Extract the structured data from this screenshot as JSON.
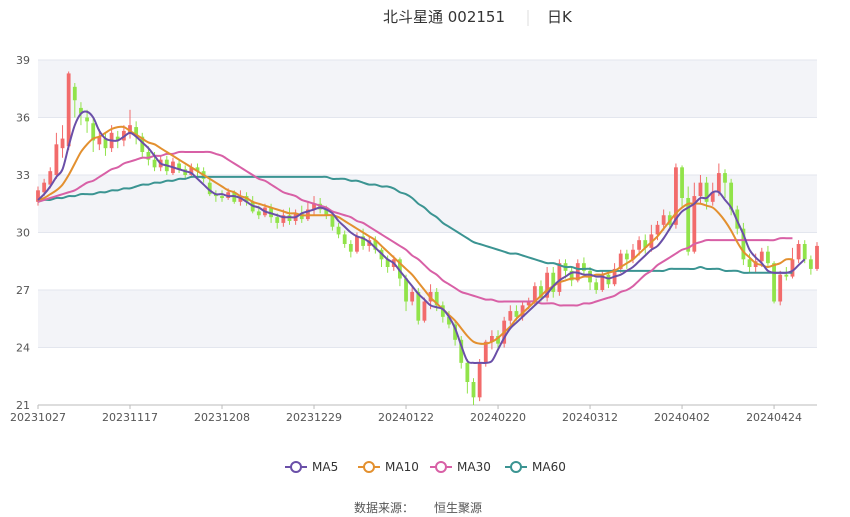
{
  "header": {
    "name": "北斗星通 002151",
    "period": "日K"
  },
  "source": {
    "label": "数据来源：",
    "value": "恒生聚源"
  },
  "legend": [
    "MA5",
    "MA10",
    "MA30",
    "MA60"
  ],
  "colors": {
    "up": "#f26b6b",
    "down": "#91e34a",
    "MA5": "#6a4fa8",
    "MA10": "#e3902f",
    "MA30": "#d860a6",
    "MA60": "#3b9492",
    "grid": "#e3e6ee",
    "band": "#f3f4f8"
  },
  "chart_data": {
    "type": "candlestick",
    "ylim": [
      21,
      39
    ],
    "yticks": [
      21,
      24,
      27,
      30,
      33,
      36,
      39
    ],
    "xtick_labels": [
      "20231027",
      "20231117",
      "20231208",
      "20231229",
      "20240122",
      "20240220",
      "20240312",
      "20240402",
      "20240424"
    ],
    "xtick_index": [
      0,
      15,
      30,
      45,
      60,
      75,
      90,
      105,
      120
    ],
    "candles": [
      [
        31.6,
        32.2,
        31.4,
        32.4
      ],
      [
        32.1,
        32.6,
        31.9,
        32.8
      ],
      [
        32.5,
        33.2,
        32.3,
        33.4
      ],
      [
        33.0,
        34.6,
        32.8,
        35.2
      ],
      [
        34.4,
        34.9,
        33.9,
        35.6
      ],
      [
        34.5,
        38.3,
        34.3,
        38.4
      ],
      [
        37.6,
        36.9,
        36.0,
        37.8
      ],
      [
        36.5,
        36.2,
        35.6,
        36.8
      ],
      [
        36.0,
        35.8,
        35.2,
        36.4
      ],
      [
        35.7,
        34.8,
        34.2,
        36.0
      ],
      [
        34.6,
        35.0,
        34.3,
        35.4
      ],
      [
        34.9,
        34.4,
        34.0,
        35.2
      ],
      [
        34.4,
        35.2,
        34.2,
        35.6
      ],
      [
        35.0,
        34.8,
        34.4,
        35.3
      ],
      [
        34.8,
        35.3,
        34.5,
        35.6
      ],
      [
        35.2,
        35.6,
        34.9,
        36.4
      ],
      [
        35.5,
        35.0,
        34.6,
        35.8
      ],
      [
        35.0,
        34.2,
        33.9,
        35.2
      ],
      [
        34.2,
        33.8,
        33.5,
        34.5
      ],
      [
        33.8,
        33.4,
        33.2,
        34.2
      ],
      [
        33.4,
        33.8,
        33.2,
        34.0
      ],
      [
        33.8,
        33.2,
        33.0,
        34.0
      ],
      [
        33.1,
        33.7,
        33.0,
        33.9
      ],
      [
        33.6,
        33.3,
        33.1,
        33.8
      ],
      [
        33.3,
        33.0,
        32.8,
        33.5
      ],
      [
        33.0,
        33.4,
        32.9,
        33.6
      ],
      [
        33.4,
        33.2,
        32.9,
        33.6
      ],
      [
        33.2,
        32.8,
        32.6,
        33.4
      ],
      [
        32.6,
        32.0,
        31.9,
        32.8
      ],
      [
        32.0,
        31.9,
        31.6,
        32.2
      ],
      [
        31.9,
        31.8,
        31.6,
        32.2
      ],
      [
        31.8,
        32.1,
        31.7,
        32.3
      ],
      [
        32.1,
        31.6,
        31.5,
        32.2
      ],
      [
        31.6,
        31.9,
        31.4,
        32.2
      ],
      [
        31.9,
        31.6,
        31.4,
        32.1
      ],
      [
        31.6,
        31.1,
        31.0,
        31.9
      ],
      [
        31.1,
        30.9,
        30.7,
        31.4
      ],
      [
        30.9,
        31.3,
        30.8,
        31.5
      ],
      [
        31.3,
        30.8,
        30.5,
        31.5
      ],
      [
        30.8,
        30.5,
        30.2,
        31.0
      ],
      [
        30.5,
        30.9,
        30.3,
        31.2
      ],
      [
        30.9,
        30.6,
        30.4,
        31.3
      ],
      [
        30.6,
        31.0,
        30.4,
        31.2
      ],
      [
        31.0,
        30.7,
        30.5,
        31.4
      ],
      [
        30.7,
        31.2,
        30.6,
        31.6
      ],
      [
        31.2,
        31.5,
        30.9,
        31.9
      ],
      [
        31.5,
        31.2,
        31.0,
        31.8
      ],
      [
        31.2,
        30.9,
        30.7,
        31.4
      ],
      [
        30.9,
        30.3,
        30.1,
        31.0
      ],
      [
        30.3,
        29.9,
        29.7,
        30.5
      ],
      [
        29.9,
        29.4,
        29.2,
        30.1
      ],
      [
        29.4,
        29.0,
        28.7,
        29.6
      ],
      [
        29.0,
        29.8,
        28.9,
        30.0
      ],
      [
        29.8,
        29.3,
        29.1,
        30.2
      ],
      [
        29.3,
        29.6,
        29.0,
        29.8
      ],
      [
        29.6,
        29.1,
        28.9,
        29.8
      ],
      [
        29.1,
        28.6,
        28.2,
        29.2
      ],
      [
        28.6,
        28.2,
        27.9,
        28.8
      ],
      [
        28.2,
        28.6,
        28.0,
        28.8
      ],
      [
        28.6,
        27.6,
        27.2,
        28.7
      ],
      [
        27.6,
        26.4,
        25.9,
        27.8
      ],
      [
        26.4,
        26.9,
        26.2,
        27.2
      ],
      [
        26.9,
        25.4,
        25.2,
        27.1
      ],
      [
        25.4,
        26.4,
        25.3,
        26.6
      ],
      [
        26.4,
        26.9,
        26.0,
        27.3
      ],
      [
        26.9,
        26.2,
        25.9,
        27.1
      ],
      [
        26.2,
        25.6,
        25.3,
        26.4
      ],
      [
        25.6,
        25.2,
        25.0,
        25.9
      ],
      [
        25.2,
        24.4,
        24.1,
        25.4
      ],
      [
        24.4,
        23.2,
        22.9,
        24.6
      ],
      [
        23.2,
        22.2,
        21.6,
        23.4
      ],
      [
        22.2,
        21.4,
        21.0,
        22.4
      ],
      [
        21.4,
        23.2,
        21.2,
        23.4
      ],
      [
        23.2,
        24.3,
        23.0,
        24.4
      ],
      [
        24.3,
        24.6,
        23.9,
        24.9
      ],
      [
        24.6,
        24.2,
        23.9,
        24.9
      ],
      [
        24.2,
        25.4,
        24.0,
        25.6
      ],
      [
        25.4,
        25.9,
        25.2,
        26.2
      ],
      [
        25.9,
        25.6,
        25.4,
        26.2
      ],
      [
        25.6,
        26.2,
        25.4,
        26.4
      ],
      [
        26.2,
        26.4,
        26.0,
        26.6
      ],
      [
        26.4,
        27.2,
        26.2,
        27.4
      ],
      [
        27.2,
        26.6,
        26.4,
        27.5
      ],
      [
        26.6,
        27.9,
        26.4,
        28.2
      ],
      [
        27.9,
        26.9,
        26.6,
        28.2
      ],
      [
        26.9,
        28.4,
        26.7,
        28.6
      ],
      [
        28.4,
        28.0,
        27.6,
        28.6
      ],
      [
        28.0,
        27.5,
        27.2,
        28.2
      ],
      [
        27.5,
        28.4,
        27.4,
        28.6
      ],
      [
        28.4,
        28.0,
        27.8,
        28.7
      ],
      [
        28.0,
        27.4,
        27.0,
        28.2
      ],
      [
        27.4,
        27.0,
        26.8,
        27.6
      ],
      [
        27.0,
        27.8,
        26.9,
        28.0
      ],
      [
        27.8,
        27.3,
        27.1,
        28.0
      ],
      [
        27.3,
        28.1,
        27.2,
        28.4
      ],
      [
        28.1,
        28.9,
        27.9,
        29.1
      ],
      [
        28.9,
        28.6,
        28.1,
        29.1
      ],
      [
        28.6,
        29.1,
        28.4,
        29.4
      ],
      [
        29.1,
        29.6,
        28.8,
        29.8
      ],
      [
        29.6,
        29.2,
        28.9,
        29.9
      ],
      [
        29.2,
        29.9,
        29.0,
        30.4
      ],
      [
        29.9,
        30.4,
        29.6,
        30.6
      ],
      [
        30.4,
        30.9,
        30.1,
        31.2
      ],
      [
        30.9,
        30.4,
        30.1,
        31.1
      ],
      [
        30.4,
        33.4,
        30.2,
        33.6
      ],
      [
        33.4,
        31.8,
        31.3,
        33.5
      ],
      [
        31.8,
        29.0,
        28.8,
        32.4
      ],
      [
        29.0,
        31.9,
        28.9,
        32.6
      ],
      [
        31.9,
        32.6,
        31.5,
        33.0
      ],
      [
        32.6,
        31.6,
        31.2,
        32.9
      ],
      [
        31.6,
        32.1,
        31.4,
        32.6
      ],
      [
        32.1,
        33.1,
        31.9,
        33.6
      ],
      [
        33.1,
        32.6,
        31.8,
        33.3
      ],
      [
        32.6,
        31.2,
        30.9,
        32.8
      ],
      [
        31.2,
        30.2,
        29.9,
        31.4
      ],
      [
        30.2,
        28.6,
        28.3,
        30.5
      ],
      [
        28.6,
        28.2,
        27.9,
        28.9
      ],
      [
        28.2,
        28.5,
        27.9,
        28.9
      ],
      [
        28.5,
        29.0,
        28.2,
        29.2
      ],
      [
        29.0,
        28.4,
        28.2,
        29.3
      ],
      [
        28.4,
        26.4,
        26.3,
        28.5
      ],
      [
        26.4,
        27.8,
        26.2,
        28.0
      ],
      [
        27.8,
        27.7,
        27.5,
        28.2
      ],
      [
        27.7,
        28.6,
        27.6,
        29.2
      ],
      [
        28.6,
        29.4,
        28.4,
        29.6
      ],
      [
        29.4,
        28.6,
        28.4,
        29.6
      ],
      [
        28.6,
        28.1,
        27.8,
        28.8
      ],
      [
        28.1,
        29.3,
        28.0,
        29.5
      ]
    ],
    "series": [
      {
        "name": "MA5",
        "values": [
          31.7,
          32.0,
          32.4,
          32.9,
          33.3,
          34.5,
          35.6,
          36.2,
          36.3,
          36.0,
          35.3,
          34.9,
          34.8,
          34.8,
          35.0,
          35.2,
          35.0,
          34.7,
          34.4,
          34.0,
          33.6,
          33.5,
          33.4,
          33.3,
          33.2,
          33.1,
          32.8,
          32.5,
          32.2,
          32.0,
          32.0,
          31.9,
          31.9,
          31.8,
          31.6,
          31.4,
          31.3,
          31.1,
          31.0,
          30.9,
          30.8,
          30.8,
          30.8,
          31.0,
          31.1,
          31.2,
          31.3,
          31.2,
          31.0,
          30.6,
          30.3,
          30.0,
          29.8,
          29.7,
          29.5,
          29.2,
          28.9,
          28.6,
          28.4,
          28.0,
          27.6,
          27.2,
          26.8,
          26.5,
          26.2,
          26.1,
          26.0,
          25.6,
          25.0,
          24.1,
          23.3,
          23.2,
          23.2,
          23.2,
          23.3,
          23.9,
          24.5,
          25.0,
          25.3,
          25.6,
          25.9,
          26.2,
          26.5,
          26.8,
          27.2,
          27.5,
          27.7,
          27.9,
          27.9,
          27.8,
          27.8,
          27.7,
          27.7,
          27.6,
          27.7,
          27.8,
          28.0,
          28.2,
          28.5,
          28.8,
          29.1,
          29.3,
          29.7,
          30.2,
          30.7,
          31.1,
          31.3,
          31.5,
          31.8,
          31.8,
          32.1,
          32.1,
          31.7,
          31.3,
          30.6,
          29.9,
          29.1,
          28.7,
          28.4,
          28.0,
          27.9,
          27.9,
          27.9,
          28.0,
          28.3,
          28.6
        ]
      },
      {
        "name": "MA10",
        "values": [
          31.7,
          31.8,
          32.0,
          32.2,
          32.5,
          33.0,
          33.6,
          34.2,
          34.6,
          34.9,
          35.0,
          35.2,
          35.4,
          35.5,
          35.5,
          35.3,
          35.1,
          34.9,
          34.7,
          34.6,
          34.4,
          34.2,
          34.0,
          33.8,
          33.6,
          33.4,
          33.2,
          33.0,
          32.8,
          32.6,
          32.4,
          32.2,
          32.1,
          31.9,
          31.8,
          31.6,
          31.5,
          31.4,
          31.3,
          31.2,
          31.1,
          31.0,
          31.0,
          30.9,
          30.9,
          30.9,
          30.9,
          30.9,
          30.9,
          30.8,
          30.6,
          30.4,
          30.2,
          30.0,
          29.8,
          29.6,
          29.3,
          29.0,
          28.7,
          28.4,
          28.1,
          27.8,
          27.4,
          27.0,
          26.6,
          26.3,
          26.0,
          25.7,
          25.4,
          25.0,
          24.6,
          24.3,
          24.2,
          24.2,
          24.3,
          24.5,
          24.8,
          25.1,
          25.5,
          25.8,
          26.1,
          26.4,
          26.7,
          27.0,
          27.2,
          27.4,
          27.5,
          27.6,
          27.6,
          27.7,
          27.7,
          27.8,
          27.8,
          27.9,
          28.0,
          28.2,
          28.4,
          28.6,
          28.9,
          29.2,
          29.5,
          29.8,
          30.2,
          30.6,
          31.0,
          31.3,
          31.5,
          31.5,
          31.5,
          31.4,
          31.3,
          31.0,
          30.6,
          30.1,
          29.5,
          29.0,
          28.7,
          28.4,
          28.3,
          28.2,
          28.3,
          28.4,
          28.6,
          28.6
        ]
      },
      {
        "name": "MA30",
        "values": [
          31.6,
          31.7,
          31.8,
          31.9,
          32.0,
          32.1,
          32.2,
          32.4,
          32.6,
          32.7,
          32.9,
          33.1,
          33.3,
          33.4,
          33.6,
          33.7,
          33.8,
          33.9,
          33.9,
          34.0,
          34.0,
          34.1,
          34.1,
          34.2,
          34.2,
          34.2,
          34.2,
          34.2,
          34.2,
          34.1,
          34.0,
          33.8,
          33.6,
          33.4,
          33.2,
          33.0,
          32.8,
          32.7,
          32.5,
          32.3,
          32.1,
          32.0,
          31.9,
          31.7,
          31.6,
          31.5,
          31.4,
          31.3,
          31.1,
          31.0,
          30.9,
          30.8,
          30.6,
          30.5,
          30.3,
          30.1,
          29.9,
          29.7,
          29.5,
          29.3,
          29.1,
          28.8,
          28.6,
          28.3,
          28.0,
          27.8,
          27.5,
          27.3,
          27.1,
          26.9,
          26.8,
          26.7,
          26.6,
          26.5,
          26.5,
          26.4,
          26.4,
          26.4,
          26.4,
          26.4,
          26.4,
          26.4,
          26.3,
          26.3,
          26.3,
          26.2,
          26.2,
          26.2,
          26.2,
          26.3,
          26.3,
          26.4,
          26.5,
          26.6,
          26.7,
          26.9,
          27.0,
          27.2,
          27.5,
          27.8,
          28.0,
          28.3,
          28.5,
          28.7,
          28.9,
          29.1,
          29.2,
          29.4,
          29.5,
          29.6,
          29.6,
          29.6,
          29.6,
          29.6,
          29.6,
          29.6,
          29.6,
          29.6,
          29.6,
          29.6,
          29.6,
          29.7,
          29.7,
          29.7
        ]
      },
      {
        "name": "MA60",
        "values": [
          31.6,
          31.7,
          31.7,
          31.8,
          31.8,
          31.9,
          31.9,
          32.0,
          32.0,
          32.0,
          32.1,
          32.1,
          32.2,
          32.2,
          32.3,
          32.3,
          32.4,
          32.5,
          32.5,
          32.6,
          32.6,
          32.7,
          32.7,
          32.8,
          32.8,
          32.9,
          32.9,
          32.9,
          32.9,
          32.9,
          32.9,
          32.9,
          32.9,
          32.9,
          32.9,
          32.9,
          32.9,
          32.9,
          32.9,
          32.9,
          32.9,
          32.9,
          32.9,
          32.9,
          32.9,
          32.9,
          32.9,
          32.9,
          32.8,
          32.8,
          32.8,
          32.7,
          32.7,
          32.6,
          32.5,
          32.5,
          32.4,
          32.4,
          32.3,
          32.1,
          32.0,
          31.8,
          31.5,
          31.3,
          31.0,
          30.8,
          30.5,
          30.3,
          30.1,
          29.9,
          29.7,
          29.5,
          29.4,
          29.3,
          29.2,
          29.1,
          29.0,
          28.9,
          28.9,
          28.8,
          28.7,
          28.6,
          28.5,
          28.4,
          28.4,
          28.3,
          28.2,
          28.2,
          28.1,
          28.1,
          28.1,
          28.0,
          28.0,
          28.0,
          28.0,
          28.0,
          28.0,
          28.0,
          28.0,
          28.0,
          28.0,
          28.0,
          28.0,
          28.1,
          28.1,
          28.1,
          28.1,
          28.1,
          28.2,
          28.1,
          28.1,
          28.1,
          28.0,
          28.0,
          28.0,
          27.9,
          27.9,
          27.9,
          27.9,
          27.9,
          27.9,
          27.9,
          27.9,
          27.9
        ]
      }
    ]
  }
}
